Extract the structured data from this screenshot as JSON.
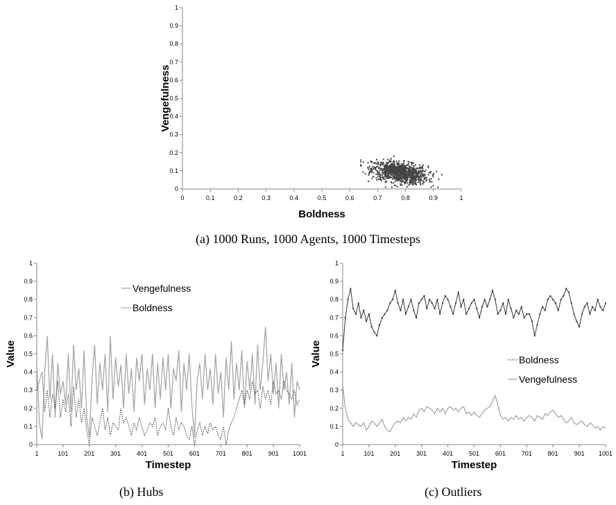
{
  "captions": {
    "a": "(a) 1000 Runs, 1000 Agents, 1000 Timesteps",
    "b": "(b) Hubs",
    "c": "(c) Outliers"
  },
  "colors": {
    "scatter_point": "#444444",
    "vengefulness_line": "#a6a6a6",
    "boldness_line": "#333333",
    "axis": "#868686"
  },
  "chart_data": [
    {
      "id": "a",
      "type": "scatter",
      "xlabel": "Boldness",
      "ylabel": "Vengefulness",
      "xlim": [
        0,
        1
      ],
      "ylim": [
        0,
        1
      ],
      "xticks": [
        "0",
        "0.1",
        "0.2",
        "0.3",
        "0.4",
        "0.5",
        "0.6",
        "0.7",
        "0.8",
        "0.9",
        "1"
      ],
      "yticks": [
        "0",
        "0.1",
        "0.2",
        "0.3",
        "0.4",
        "0.5",
        "0.6",
        "0.7",
        "0.8",
        "0.9",
        "1"
      ],
      "grid": false,
      "series": [
        {
          "cluster": {
            "count": 1000,
            "x_mean": 0.78,
            "x_std": 0.05,
            "x_range": [
              0.64,
              0.93
            ],
            "y_mean": 0.09,
            "y_std": 0.03,
            "y_range": [
              0.01,
              0.18
            ],
            "correlation": -0.35
          }
        }
      ]
    },
    {
      "id": "b",
      "type": "line",
      "xlabel": "Timestep",
      "ylabel": "Value",
      "xlim": [
        1,
        1001
      ],
      "ylim": [
        0,
        1
      ],
      "xticks": [
        "1",
        "101",
        "201",
        "301",
        "401",
        "501",
        "601",
        "701",
        "801",
        "901",
        "1001"
      ],
      "yticks": [
        "0",
        "0.1",
        "0.2",
        "0.3",
        "0.4",
        "0.5",
        "0.6",
        "0.7",
        "0.8",
        "0.9",
        "1"
      ],
      "legend": "top-center",
      "series": [
        {
          "name": "Vengefulness",
          "style": "solid",
          "x": [
            1,
            11,
            21,
            31,
            41,
            51,
            61,
            71,
            81,
            91,
            101,
            111,
            121,
            131,
            141,
            151,
            161,
            171,
            181,
            191,
            201,
            211,
            221,
            231,
            241,
            251,
            261,
            271,
            281,
            291,
            301,
            311,
            321,
            331,
            341,
            351,
            361,
            371,
            381,
            391,
            401,
            411,
            421,
            431,
            441,
            451,
            461,
            471,
            481,
            491,
            501,
            511,
            521,
            531,
            541,
            551,
            561,
            571,
            581,
            591,
            601,
            611,
            621,
            631,
            641,
            651,
            661,
            671,
            681,
            691,
            701,
            711,
            721,
            731,
            741,
            751,
            761,
            771,
            781,
            791,
            801,
            811,
            821,
            831,
            841,
            851,
            861,
            871,
            881,
            891,
            901,
            911,
            921,
            931,
            941,
            951,
            961,
            971,
            981,
            991,
            1001
          ],
          "values": [
            0.45,
            0.12,
            0.03,
            0.4,
            0.6,
            0.25,
            0.5,
            0.15,
            0.45,
            0.28,
            0.35,
            0.22,
            0.5,
            0.18,
            0.55,
            0.3,
            0.42,
            0.2,
            0.52,
            0.15,
            0.04,
            0.35,
            0.55,
            0.22,
            0.45,
            0.3,
            0.5,
            0.18,
            0.6,
            0.25,
            0.48,
            0.32,
            0.44,
            0.2,
            0.5,
            0.28,
            0.42,
            0.18,
            0.48,
            0.35,
            0.5,
            0.22,
            0.42,
            0.3,
            0.5,
            0.2,
            0.45,
            0.25,
            0.48,
            0.3,
            0.5,
            0.2,
            0.42,
            0.35,
            0.52,
            0.18,
            0.45,
            0.3,
            0.5,
            0.22,
            0.04,
            0.35,
            0.45,
            0.25,
            0.5,
            0.3,
            0.42,
            0.22,
            0.5,
            0.28,
            0.4,
            0.15,
            0.48,
            0.3,
            0.57,
            0.25,
            0.45,
            0.3,
            0.52,
            0.2,
            0.46,
            0.3,
            0.5,
            0.22,
            0.55,
            0.3,
            0.45,
            0.65,
            0.35,
            0.5,
            0.28,
            0.45,
            0.2,
            0.5,
            0.3,
            0.4,
            0.22,
            0.45,
            0.15,
            0.35,
            0.3
          ]
        },
        {
          "name": "Boldness",
          "style": "dotted",
          "x": [
            1,
            11,
            21,
            31,
            41,
            51,
            61,
            71,
            81,
            91,
            101,
            111,
            121,
            131,
            141,
            151,
            161,
            171,
            181,
            191,
            201,
            211,
            221,
            231,
            241,
            251,
            261,
            271,
            281,
            291,
            301,
            311,
            321,
            331,
            341,
            351,
            361,
            371,
            381,
            391,
            401,
            411,
            421,
            431,
            441,
            451,
            461,
            471,
            481,
            491,
            501,
            511,
            521,
            531,
            541,
            551,
            561,
            571,
            581,
            591,
            601,
            611,
            621,
            631,
            641,
            651,
            661,
            671,
            681,
            691,
            701,
            711,
            721,
            731,
            741,
            751,
            761,
            771,
            781,
            791,
            801,
            811,
            821,
            831,
            841,
            851,
            861,
            871,
            881,
            891,
            901,
            911,
            921,
            931,
            941,
            951,
            961,
            971,
            981,
            991,
            1001
          ],
          "values": [
            0.3,
            0.35,
            0.4,
            0.18,
            0.3,
            0.15,
            0.28,
            0.2,
            0.35,
            0.15,
            0.25,
            0.18,
            0.28,
            0.1,
            0.32,
            0.15,
            0.25,
            0.12,
            0.2,
            0.08,
            0.0,
            0.15,
            0.1,
            0.05,
            0.12,
            0.2,
            0.08,
            0.15,
            0.05,
            0.12,
            0.1,
            0.08,
            0.2,
            0.12,
            0.15,
            0.1,
            0.05,
            0.12,
            0.08,
            0.15,
            0.1,
            0.05,
            0.08,
            0.12,
            0.1,
            0.15,
            0.05,
            0.1,
            0.12,
            0.08,
            0.2,
            0.1,
            0.05,
            0.15,
            0.08,
            0.12,
            0.1,
            0.05,
            0.03,
            0.1,
            0.0,
            0.08,
            0.12,
            0.05,
            0.1,
            0.06,
            0.12,
            0.08,
            0.1,
            0.05,
            0.03,
            0.1,
            0.0,
            0.08,
            0.12,
            0.15,
            0.2,
            0.25,
            0.3,
            0.22,
            0.3,
            0.25,
            0.35,
            0.28,
            0.3,
            0.2,
            0.32,
            0.25,
            0.3,
            0.22,
            0.35,
            0.28,
            0.3,
            0.25,
            0.35,
            0.3,
            0.28,
            0.25,
            0.3,
            0.22,
            0.25
          ]
        }
      ]
    },
    {
      "id": "c",
      "type": "line",
      "xlabel": "Timestep",
      "ylabel": "Value",
      "xlim": [
        1,
        1001
      ],
      "ylim": [
        0,
        1
      ],
      "xticks": [
        "1",
        "101",
        "201",
        "301",
        "401",
        "501",
        "601",
        "701",
        "801",
        "901",
        "1001"
      ],
      "yticks": [
        "0",
        "0.1",
        "0.2",
        "0.3",
        "0.4",
        "0.5",
        "0.6",
        "0.7",
        "0.8",
        "0.9",
        "1"
      ],
      "legend": "right",
      "series": [
        {
          "name": "Boldness",
          "style": "dotted-markers",
          "x": [
            1,
            11,
            21,
            31,
            41,
            51,
            61,
            71,
            81,
            91,
            101,
            111,
            121,
            131,
            141,
            151,
            161,
            171,
            181,
            191,
            201,
            211,
            221,
            231,
            241,
            251,
            261,
            271,
            281,
            291,
            301,
            311,
            321,
            331,
            341,
            351,
            361,
            371,
            381,
            391,
            401,
            411,
            421,
            431,
            441,
            451,
            461,
            471,
            481,
            491,
            501,
            511,
            521,
            531,
            541,
            551,
            561,
            571,
            581,
            591,
            601,
            611,
            621,
            631,
            641,
            651,
            661,
            671,
            681,
            691,
            701,
            711,
            721,
            731,
            741,
            751,
            761,
            771,
            781,
            791,
            801,
            811,
            821,
            831,
            841,
            851,
            861,
            871,
            881,
            891,
            901,
            911,
            921,
            931,
            941,
            951,
            961,
            971,
            981,
            991,
            1001
          ],
          "values": [
            0.52,
            0.7,
            0.8,
            0.86,
            0.75,
            0.72,
            0.78,
            0.7,
            0.74,
            0.68,
            0.72,
            0.65,
            0.62,
            0.6,
            0.66,
            0.7,
            0.72,
            0.74,
            0.78,
            0.8,
            0.85,
            0.78,
            0.74,
            0.8,
            0.72,
            0.76,
            0.8,
            0.74,
            0.7,
            0.78,
            0.8,
            0.82,
            0.75,
            0.8,
            0.78,
            0.75,
            0.8,
            0.72,
            0.78,
            0.82,
            0.8,
            0.76,
            0.72,
            0.78,
            0.84,
            0.76,
            0.8,
            0.72,
            0.75,
            0.78,
            0.8,
            0.75,
            0.7,
            0.76,
            0.8,
            0.76,
            0.8,
            0.85,
            0.8,
            0.72,
            0.74,
            0.78,
            0.72,
            0.8,
            0.75,
            0.7,
            0.74,
            0.72,
            0.76,
            0.7,
            0.72,
            0.72,
            0.68,
            0.6,
            0.66,
            0.72,
            0.76,
            0.74,
            0.8,
            0.82,
            0.8,
            0.78,
            0.74,
            0.8,
            0.82,
            0.86,
            0.84,
            0.78,
            0.72,
            0.68,
            0.65,
            0.72,
            0.76,
            0.78,
            0.72,
            0.76,
            0.74,
            0.8,
            0.76,
            0.74,
            0.78
          ]
        },
        {
          "name": "Vengefulness",
          "style": "solid",
          "x": [
            1,
            11,
            21,
            31,
            41,
            51,
            61,
            71,
            81,
            91,
            101,
            111,
            121,
            131,
            141,
            151,
            161,
            171,
            181,
            191,
            201,
            211,
            221,
            231,
            241,
            251,
            261,
            271,
            281,
            291,
            301,
            311,
            321,
            331,
            341,
            351,
            361,
            371,
            381,
            391,
            401,
            411,
            421,
            431,
            441,
            451,
            461,
            471,
            481,
            491,
            501,
            511,
            521,
            531,
            541,
            551,
            561,
            571,
            581,
            591,
            601,
            611,
            621,
            631,
            641,
            651,
            661,
            671,
            681,
            691,
            701,
            711,
            721,
            731,
            741,
            751,
            761,
            771,
            781,
            791,
            801,
            811,
            821,
            831,
            841,
            851,
            861,
            871,
            881,
            891,
            901,
            911,
            921,
            931,
            941,
            951,
            961,
            971,
            981,
            991,
            1001
          ],
          "values": [
            0.33,
            0.2,
            0.14,
            0.12,
            0.1,
            0.12,
            0.11,
            0.1,
            0.12,
            0.08,
            0.1,
            0.13,
            0.12,
            0.1,
            0.12,
            0.14,
            0.1,
            0.08,
            0.07,
            0.1,
            0.12,
            0.13,
            0.12,
            0.15,
            0.13,
            0.15,
            0.14,
            0.17,
            0.15,
            0.19,
            0.2,
            0.18,
            0.21,
            0.2,
            0.19,
            0.17,
            0.2,
            0.18,
            0.2,
            0.17,
            0.2,
            0.21,
            0.19,
            0.2,
            0.18,
            0.2,
            0.21,
            0.17,
            0.18,
            0.16,
            0.18,
            0.16,
            0.15,
            0.17,
            0.19,
            0.2,
            0.21,
            0.24,
            0.27,
            0.22,
            0.16,
            0.14,
            0.15,
            0.13,
            0.15,
            0.14,
            0.16,
            0.14,
            0.15,
            0.13,
            0.15,
            0.16,
            0.15,
            0.13,
            0.16,
            0.15,
            0.14,
            0.17,
            0.16,
            0.18,
            0.19,
            0.17,
            0.15,
            0.16,
            0.14,
            0.12,
            0.13,
            0.15,
            0.12,
            0.11,
            0.12,
            0.13,
            0.11,
            0.1,
            0.12,
            0.11,
            0.09,
            0.1,
            0.08,
            0.1,
            0.09
          ]
        }
      ]
    }
  ]
}
